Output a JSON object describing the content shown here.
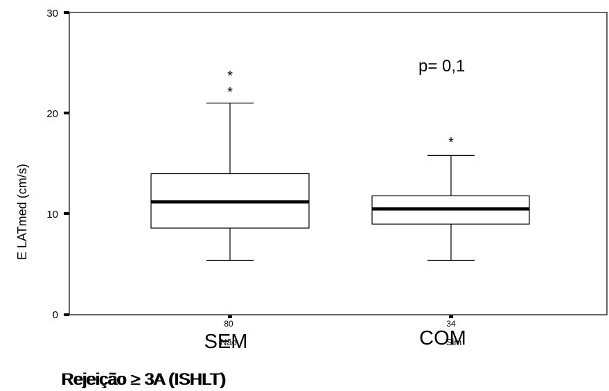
{
  "chart_data": {
    "type": "boxplot",
    "ylabel": "E LATmed (cm/s)",
    "ylim": [
      0,
      30
    ],
    "yticks": [
      0,
      10,
      20,
      30
    ],
    "annotation": "p= 0,1",
    "xlabel_overprint": [
      "Rejeição ≥ 3A (ISHLT)",
      "Rejeição ≥ 3A (ISHLT)"
    ],
    "categories": [
      {
        "label": "SEM",
        "sublabel": "Não",
        "n": "80",
        "min": 5.4,
        "q1": 8.6,
        "median": 11.2,
        "q3": 14.0,
        "max": 21.0,
        "outliers": [
          22.4,
          24.0
        ]
      },
      {
        "label": "COM",
        "sublabel": "Sim",
        "n": "34",
        "min": 5.4,
        "q1": 9.0,
        "median": 10.5,
        "q3": 11.8,
        "max": 15.8,
        "outliers": [
          17.4
        ]
      }
    ],
    "grid": false,
    "legend": "none"
  }
}
